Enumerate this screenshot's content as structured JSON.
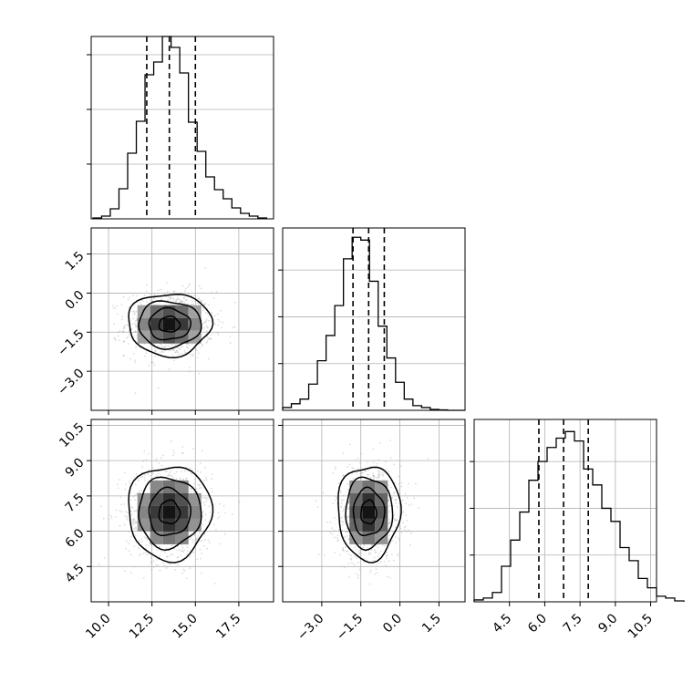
{
  "figure": {
    "type": "corner plot"
  },
  "chart_data": [
    {
      "panel": "hist-0",
      "type": "bar",
      "title": "",
      "xlabel": "",
      "ylabel": "",
      "xlim": [
        9,
        19.5
      ],
      "ylim": [
        0,
        2000
      ],
      "show_xticklabels": false,
      "bin_start": 9.1,
      "bin_width": 0.5,
      "values": [
        10,
        30,
        110,
        330,
        720,
        1070,
        1580,
        1720,
        2000,
        1880,
        1600,
        1060,
        740,
        460,
        320,
        220,
        120,
        60,
        30,
        10
      ],
      "quantiles": [
        12.2,
        13.5,
        15.0
      ],
      "yticks": [
        600,
        1200,
        1800
      ]
    },
    {
      "panel": "hist-1",
      "type": "bar",
      "title": "",
      "xlabel": "",
      "ylabel": "",
      "xlim": [
        -4.5,
        2.5
      ],
      "ylim": [
        0,
        1950
      ],
      "show_xticklabels": false,
      "bin_start": -4.5,
      "bin_width": 0.3333,
      "values": [
        30,
        70,
        120,
        280,
        530,
        800,
        1120,
        1620,
        1850,
        1820,
        1380,
        900,
        560,
        300,
        120,
        50,
        30,
        10,
        5,
        0,
        0
      ],
      "quantiles": [
        -1.8,
        -1.2,
        -0.6
      ],
      "yticks": [
        500,
        1000,
        1500
      ]
    },
    {
      "panel": "hist-2",
      "type": "bar",
      "title": "",
      "xlabel": "",
      "ylabel": "",
      "xlim": [
        3,
        10.75
      ],
      "ylim": [
        0,
        1950
      ],
      "bin_start": 3.0,
      "bin_width": 0.3875,
      "values": [
        20,
        40,
        100,
        380,
        660,
        960,
        1300,
        1500,
        1650,
        1750,
        1820,
        1720,
        1420,
        1250,
        1000,
        860,
        580,
        440,
        250,
        150,
        60,
        40,
        10
      ],
      "quantiles": [
        5.75,
        6.8,
        7.85
      ],
      "xticks": [
        4.5,
        6.0,
        7.5,
        9.0,
        10.5
      ],
      "xticklabels": [
        "4.5",
        "6.0",
        "7.5",
        "9.0",
        "10.5"
      ],
      "yticks": [
        500,
        1000,
        1500
      ]
    },
    {
      "panel": "scatter-1-0",
      "type": "scatter",
      "title": "",
      "xlabel": "",
      "ylabel": "",
      "xlim": [
        9,
        19.5
      ],
      "ylim": [
        -4.5,
        2.5
      ],
      "center": [
        13.5,
        -1.2
      ],
      "spread": [
        1.2,
        0.6
      ],
      "yticks": [
        -3.0,
        -1.5,
        0.0,
        1.5
      ],
      "yticklabels": [
        "−3.0",
        "−1.5",
        "0.0",
        "1.5"
      ],
      "contour_levels_sigma": [
        0.5,
        1.0,
        1.5,
        2.0
      ]
    },
    {
      "panel": "scatter-2-0",
      "type": "scatter",
      "title": "",
      "xlabel": "",
      "ylabel": "",
      "xlim": [
        9,
        19.5
      ],
      "ylim": [
        3,
        10.75
      ],
      "center": [
        13.5,
        6.8
      ],
      "spread": [
        1.2,
        1.0
      ],
      "xticks": [
        10.0,
        12.5,
        15.0,
        17.5
      ],
      "xticklabels": [
        "10.0",
        "12.5",
        "15.0",
        "17.5"
      ],
      "yticks": [
        4.5,
        6.0,
        7.5,
        9.0,
        10.5
      ],
      "yticklabels": [
        "4.5",
        "6.0",
        "7.5",
        "9.0",
        "10.5"
      ],
      "contour_levels_sigma": [
        0.5,
        1.0,
        1.5,
        2.0
      ]
    },
    {
      "panel": "scatter-2-1",
      "type": "scatter",
      "title": "",
      "xlabel": "",
      "ylabel": "",
      "xlim": [
        -4.5,
        2.5
      ],
      "ylim": [
        3,
        10.75
      ],
      "center": [
        -1.2,
        6.8
      ],
      "spread": [
        0.6,
        1.0
      ],
      "xticks": [
        -3.0,
        -1.5,
        0.0,
        1.5
      ],
      "xticklabels": [
        "−3.0",
        "−1.5",
        "0.0",
        "1.5"
      ],
      "contour_levels_sigma": [
        0.5,
        1.0,
        1.5,
        2.0
      ]
    }
  ]
}
